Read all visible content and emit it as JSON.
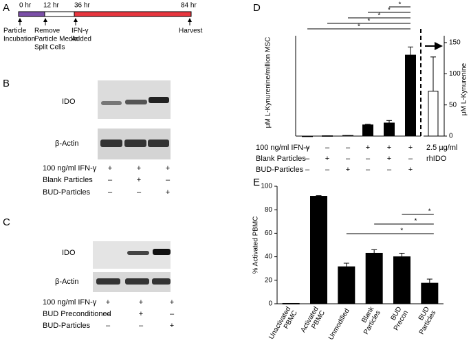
{
  "panels": {
    "A": {
      "letter": "A",
      "times": [
        "0 hr",
        "12 hr",
        "36 hr",
        "84 hr"
      ],
      "events": [
        [
          "Particle",
          "Incubation"
        ],
        [
          "Remove",
          "Particle Media",
          "Split Cells"
        ],
        [
          "IFN-γ",
          "Added"
        ],
        [
          "Harvest"
        ]
      ]
    },
    "B": {
      "letter": "B",
      "blots": [
        "IDO",
        "β-Actin"
      ],
      "conditions": [
        {
          "label": "100 ng/ml IFN-γ",
          "marks": [
            "+",
            "+",
            "+"
          ]
        },
        {
          "label": "Blank Particles",
          "marks": [
            "–",
            "+",
            "–"
          ]
        },
        {
          "label": "BUD-Particles",
          "marks": [
            "–",
            "–",
            "+"
          ]
        }
      ]
    },
    "C": {
      "letter": "C",
      "blots": [
        "IDO",
        "β-Actin"
      ],
      "conditions": [
        {
          "label": "100 ng/ml IFN-γ",
          "marks": [
            "+",
            "+",
            "+"
          ]
        },
        {
          "label": "BUD Preconditioned",
          "marks": [
            "–",
            "+",
            "–"
          ]
        },
        {
          "label": "BUD-Particles",
          "marks": [
            "–",
            "–",
            "+"
          ]
        }
      ]
    }
  },
  "chart_data": [
    {
      "panel": "D",
      "type": "bar",
      "y_label": "μM L-Kynurenine/million MSC",
      "y2_label": "μM L-Kynurenine",
      "ylim": [
        0,
        150
      ],
      "y2lim": [
        0,
        150
      ],
      "y2ticks": [
        0,
        50,
        100,
        150
      ],
      "series": [
        {
          "color": "#000000",
          "values": [
            0,
            0.5,
            1,
            18,
            21,
            130,
            null
          ],
          "errors": [
            0,
            0,
            0,
            1,
            4,
            13,
            null
          ]
        },
        {
          "color": "#ffffff",
          "axis": "y2",
          "values": [
            null,
            null,
            null,
            null,
            null,
            null,
            72
          ],
          "errors": [
            null,
            null,
            null,
            null,
            null,
            null,
            55
          ]
        }
      ],
      "conditions": [
        {
          "label": "100 ng/ml IFN-γ",
          "marks": [
            "–",
            "–",
            "–",
            "+",
            "+",
            "+",
            "2.5 µg/ml"
          ]
        },
        {
          "label": "Blank Particles",
          "marks": [
            "–",
            "+",
            "–",
            "–",
            "+",
            "–",
            "rhIDO"
          ]
        },
        {
          "label": "BUD-Particles",
          "marks": [
            "–",
            "–",
            "+",
            "–",
            "–",
            "+",
            null
          ]
        }
      ],
      "significance": [
        "*",
        "*",
        "*",
        "*",
        "*"
      ]
    },
    {
      "panel": "E",
      "type": "bar",
      "y_label": "% Activated PBMC",
      "categories": [
        [
          "Unactivated",
          "PBMC"
        ],
        [
          "Activated",
          "PBMC"
        ],
        [
          "Unmodified"
        ],
        [
          "Blank",
          "Particles"
        ],
        [
          "BUD",
          "Precon"
        ],
        [
          "BUD",
          "Particles"
        ]
      ],
      "series": [
        {
          "color": "#000000",
          "values": [
            0.3,
            91.5,
            31.5,
            43,
            40,
            17.5
          ],
          "errors": [
            0,
            0.5,
            3,
            3,
            3,
            3.5
          ]
        }
      ],
      "ylim": [
        0,
        100
      ],
      "yticks": [
        0,
        20,
        40,
        60,
        80,
        100
      ],
      "significance": [
        "*",
        "*",
        "*"
      ]
    }
  ]
}
